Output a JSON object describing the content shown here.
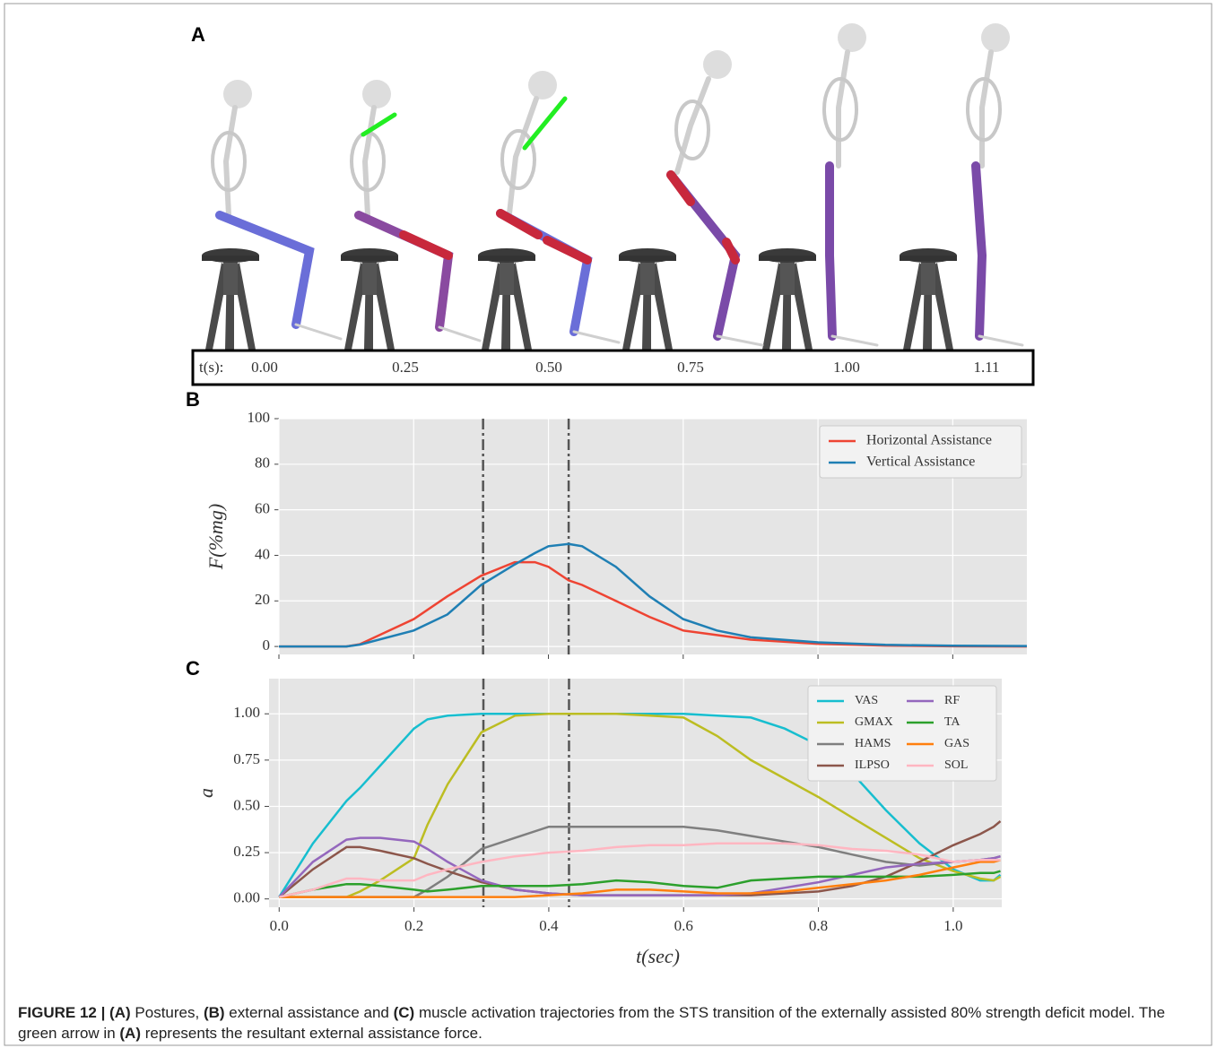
{
  "panel_labels": [
    "A",
    "B",
    "C"
  ],
  "panel_a": {
    "time_label": "t(s):",
    "times": [
      "0.00",
      "0.25",
      "0.50",
      "0.75",
      "1.00",
      "1.11"
    ]
  },
  "chart_data": [
    {
      "type": "line",
      "y_label": "F(%mg)",
      "x": [
        0,
        0.1,
        0.12,
        0.2,
        0.25,
        0.3,
        0.35,
        0.38,
        0.4,
        0.43,
        0.45,
        0.5,
        0.55,
        0.6,
        0.65,
        0.7,
        0.8,
        0.9,
        1.0,
        1.11
      ],
      "series": [
        {
          "name": "Horizontal Assistance",
          "color": "#ee4433",
          "values": [
            0,
            0,
            1,
            12,
            22,
            31,
            37,
            37,
            35,
            29,
            27,
            20,
            13,
            7,
            5,
            3,
            1.2,
            0.4,
            0.1,
            0
          ]
        },
        {
          "name": "Vertical Assistance",
          "color": "#1f7fb4",
          "values": [
            0,
            0,
            0.8,
            7,
            14,
            27,
            36,
            41,
            44,
            45,
            44,
            35,
            22,
            12,
            7,
            4,
            1.8,
            0.7,
            0.3,
            0.2
          ]
        }
      ],
      "xlim": [
        0,
        1.11
      ],
      "ylim": [
        -3.5,
        100
      ],
      "xticks": [
        0,
        0.2,
        0.4,
        0.6,
        0.8,
        1.0
      ],
      "yticks": [
        0,
        20,
        40,
        60,
        80,
        100
      ],
      "vlines": [
        0.303,
        0.43
      ],
      "grid": true,
      "legend": "upper right",
      "legend_columns": 1
    },
    {
      "type": "line",
      "y_label": "a",
      "x_label": "t(sec)",
      "x": [
        0,
        0.05,
        0.1,
        0.12,
        0.15,
        0.2,
        0.22,
        0.25,
        0.3,
        0.35,
        0.4,
        0.45,
        0.5,
        0.55,
        0.6,
        0.65,
        0.7,
        0.75,
        0.8,
        0.85,
        0.9,
        0.95,
        1.0,
        1.04,
        1.06,
        1.07
      ],
      "series": [
        {
          "name": "VAS",
          "color": "#17becf",
          "values": [
            0.01,
            0.3,
            0.53,
            0.6,
            0.72,
            0.92,
            0.97,
            0.99,
            1,
            1,
            1,
            1,
            1,
            1,
            1,
            0.99,
            0.98,
            0.92,
            0.83,
            0.68,
            0.48,
            0.3,
            0.16,
            0.1,
            0.1,
            0.13
          ]
        },
        {
          "name": "GMAX",
          "color": "#bcbd22",
          "values": [
            0.01,
            0.01,
            0.01,
            0.04,
            0.1,
            0.22,
            0.4,
            0.62,
            0.9,
            0.99,
            1,
            1,
            1,
            0.99,
            0.98,
            0.88,
            0.75,
            0.65,
            0.55,
            0.44,
            0.33,
            0.22,
            0.15,
            0.11,
            0.1,
            0.12
          ]
        },
        {
          "name": "HAMS",
          "color": "#7f7f7f",
          "values": [
            0.01,
            0.01,
            0.01,
            0.01,
            0.01,
            0.01,
            0.05,
            0.12,
            0.27,
            0.33,
            0.39,
            0.39,
            0.39,
            0.39,
            0.39,
            0.37,
            0.34,
            0.31,
            0.28,
            0.24,
            0.2,
            0.18,
            0.2,
            0.21,
            0.22,
            0.23
          ]
        },
        {
          "name": "ILPSO",
          "color": "#8c564b",
          "values": [
            0.01,
            0.16,
            0.28,
            0.28,
            0.26,
            0.22,
            0.19,
            0.15,
            0.09,
            0.05,
            0.03,
            0.02,
            0.02,
            0.02,
            0.02,
            0.02,
            0.02,
            0.03,
            0.04,
            0.07,
            0.12,
            0.2,
            0.29,
            0.35,
            0.39,
            0.42
          ]
        },
        {
          "name": "RF",
          "color": "#9467bd",
          "values": [
            0.01,
            0.2,
            0.32,
            0.33,
            0.33,
            0.31,
            0.27,
            0.2,
            0.1,
            0.05,
            0.03,
            0.02,
            0.02,
            0.02,
            0.02,
            0.02,
            0.03,
            0.06,
            0.09,
            0.13,
            0.17,
            0.19,
            0.2,
            0.21,
            0.22,
            0.23
          ]
        },
        {
          "name": "TA",
          "color": "#2ca02c",
          "values": [
            0.01,
            0.05,
            0.08,
            0.08,
            0.07,
            0.05,
            0.04,
            0.05,
            0.07,
            0.07,
            0.07,
            0.08,
            0.1,
            0.09,
            0.07,
            0.06,
            0.1,
            0.11,
            0.12,
            0.12,
            0.12,
            0.12,
            0.13,
            0.14,
            0.14,
            0.15
          ]
        },
        {
          "name": "GAS",
          "color": "#ff7f0e",
          "values": [
            0.01,
            0.01,
            0.01,
            0.01,
            0.01,
            0.01,
            0.01,
            0.01,
            0.01,
            0.01,
            0.02,
            0.03,
            0.05,
            0.05,
            0.04,
            0.03,
            0.03,
            0.04,
            0.06,
            0.08,
            0.1,
            0.13,
            0.17,
            0.2,
            0.2,
            0.21
          ]
        },
        {
          "name": "SOL",
          "color": "#ffb6c1",
          "values": [
            0.01,
            0.05,
            0.11,
            0.11,
            0.1,
            0.1,
            0.13,
            0.16,
            0.2,
            0.23,
            0.25,
            0.26,
            0.28,
            0.29,
            0.29,
            0.3,
            0.3,
            0.3,
            0.29,
            0.27,
            0.26,
            0.24,
            0.2,
            0.21,
            0.21,
            0.21
          ]
        }
      ],
      "xlim": [
        -0.015,
        1.072
      ],
      "ylim": [
        -0.045,
        1.19
      ],
      "xticks": [
        {
          "value": 0,
          "label": "0.0"
        },
        0.2,
        0.4,
        0.6,
        0.8,
        {
          "value": 1,
          "label": "1.0"
        }
      ],
      "yticks": [
        {
          "value": 0,
          "label": "0.00"
        },
        0.25,
        {
          "value": 0.5,
          "label": "0.50"
        },
        0.75,
        {
          "value": 1,
          "label": "1.00"
        }
      ],
      "vlines": [
        0.303,
        0.43
      ],
      "grid": true,
      "legend": "upper right",
      "legend_columns": 2
    }
  ],
  "caption": {
    "segments": [
      {
        "text": "FIGURE 12 | (A)",
        "bold": true
      },
      {
        "text": " Postures, ",
        "bold": false
      },
      {
        "text": "(B)",
        "bold": true
      },
      {
        "text": " external assistance and ",
        "bold": false
      },
      {
        "text": "(C)",
        "bold": true
      },
      {
        "text": " muscle activation trajectories from the STS transition of the externally assisted 80% strength deficit model. The green arrow in ",
        "bold": false
      },
      {
        "text": "(A)",
        "bold": true
      },
      {
        "text": " represents the resultant external assistance force.",
        "bold": false
      }
    ]
  }
}
